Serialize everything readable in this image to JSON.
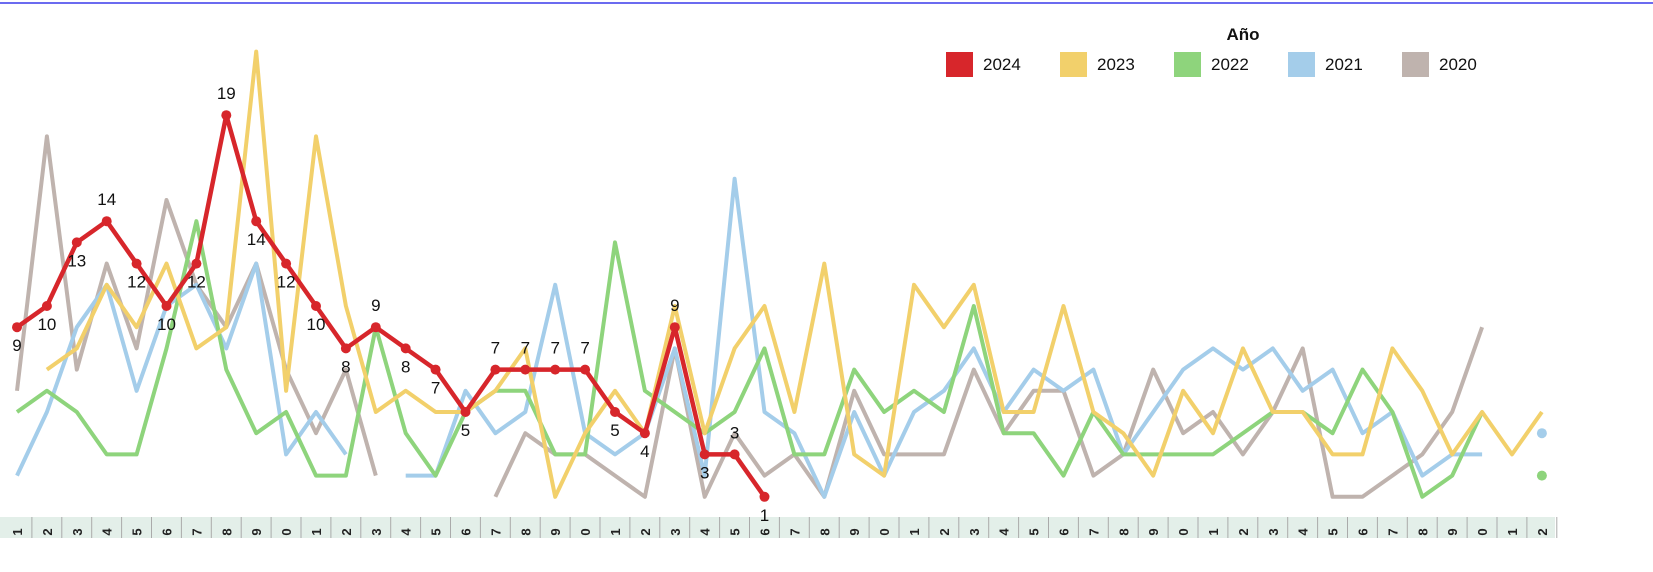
{
  "chart_data": {
    "type": "line",
    "legend_title": "Año",
    "legend_position": "top-right",
    "categories": [
      "1",
      "2",
      "3",
      "4",
      "5",
      "6",
      "7",
      "8",
      "9",
      "0",
      "1",
      "2",
      "3",
      "4",
      "5",
      "6",
      "7",
      "8",
      "9",
      "0",
      "1",
      "2",
      "3",
      "4",
      "5",
      "6",
      "7",
      "8",
      "9",
      "0",
      "1",
      "2",
      "3",
      "4",
      "5",
      "6",
      "7",
      "8",
      "9",
      "0",
      "1",
      "2",
      "3",
      "4",
      "5",
      "6",
      "7",
      "8",
      "9",
      "0",
      "1",
      "2"
    ],
    "ylim": [
      0,
      24
    ],
    "series": [
      {
        "name": "2024",
        "color": "#d7262b",
        "labels": true,
        "values": [
          9,
          10,
          13,
          14,
          12,
          10,
          12,
          19,
          14,
          12,
          10,
          8,
          9,
          8,
          7,
          5,
          7,
          7,
          7,
          7,
          5,
          4,
          9,
          3,
          3,
          1,
          null,
          null,
          null,
          null,
          null,
          null,
          null,
          null,
          null,
          null,
          null,
          null,
          null,
          null,
          null,
          null,
          null,
          null,
          null,
          null,
          null,
          null,
          null,
          null,
          null,
          null
        ]
      },
      {
        "name": "2023",
        "color": "#f2d06b",
        "values": [
          null,
          7,
          8,
          11,
          9,
          12,
          8,
          9,
          22,
          6,
          18,
          10,
          5,
          6,
          5,
          5,
          6,
          8,
          1,
          4,
          6,
          4,
          10,
          4,
          8,
          10,
          5,
          12,
          3,
          2,
          11,
          9,
          11,
          5,
          5,
          10,
          5,
          4,
          2,
          6,
          4,
          8,
          5,
          5,
          3,
          3,
          8,
          6,
          3,
          5,
          3,
          5
        ]
      },
      {
        "name": "2022",
        "color": "#8ed47c",
        "values": [
          5,
          6,
          5,
          3,
          3,
          8,
          14,
          7,
          4,
          5,
          2,
          2,
          9,
          4,
          2,
          5,
          6,
          6,
          3,
          3,
          13,
          6,
          5,
          4,
          5,
          8,
          3,
          3,
          7,
          5,
          6,
          5,
          10,
          4,
          4,
          2,
          5,
          3,
          3,
          3,
          3,
          4,
          5,
          5,
          4,
          7,
          5,
          1,
          2,
          5,
          null,
          2
        ]
      },
      {
        "name": "2021",
        "color": "#a4cdea",
        "values": [
          2,
          5,
          9,
          11,
          6,
          10,
          11,
          8,
          12,
          3,
          5,
          3,
          null,
          2,
          2,
          6,
          4,
          5,
          11,
          4,
          3,
          4,
          8,
          2,
          16,
          5,
          4,
          1,
          5,
          2,
          5,
          6,
          8,
          5,
          7,
          6,
          7,
          3,
          5,
          7,
          8,
          7,
          8,
          6,
          7,
          4,
          5,
          2,
          3,
          3,
          null,
          4
        ]
      },
      {
        "name": "2020",
        "color": "#bfb3ae",
        "values": [
          6,
          18,
          7,
          12,
          8,
          15,
          11,
          9,
          12,
          7,
          4,
          7,
          2,
          null,
          null,
          null,
          1,
          4,
          3,
          3,
          2,
          1,
          8,
          1,
          4,
          2,
          3,
          1,
          6,
          3,
          3,
          3,
          7,
          4,
          6,
          6,
          2,
          3,
          7,
          4,
          5,
          3,
          5,
          8,
          1,
          1,
          2,
          3,
          5,
          9,
          null,
          null
        ]
      }
    ]
  }
}
